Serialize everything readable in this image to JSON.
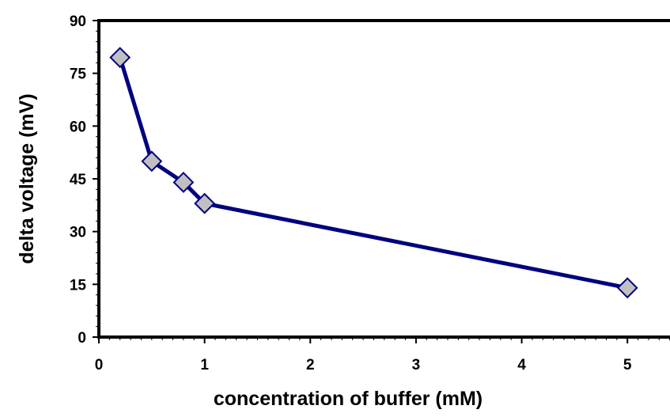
{
  "chart_data": {
    "type": "line",
    "title": "",
    "xlabel": "concentration of buffer (mM)",
    "ylabel": "delta voltage (mV)",
    "xlim": [
      0,
      5.5
    ],
    "ylim": [
      0,
      90
    ],
    "x_ticks": [
      "0",
      "1",
      "2",
      "3",
      "4",
      "5"
    ],
    "y_ticks": [
      "0",
      "15",
      "30",
      "45",
      "60",
      "75",
      "90"
    ],
    "grid": false,
    "legend": "none",
    "series": [
      {
        "x": [
          0.2,
          0.5,
          0.8,
          1.0,
          5.0
        ],
        "y": [
          79.5,
          50,
          44,
          38,
          14
        ],
        "line_color": "#000080",
        "marker": "diamond",
        "marker_fill": "#c0c0c0",
        "marker_stroke": "#000080"
      }
    ]
  }
}
